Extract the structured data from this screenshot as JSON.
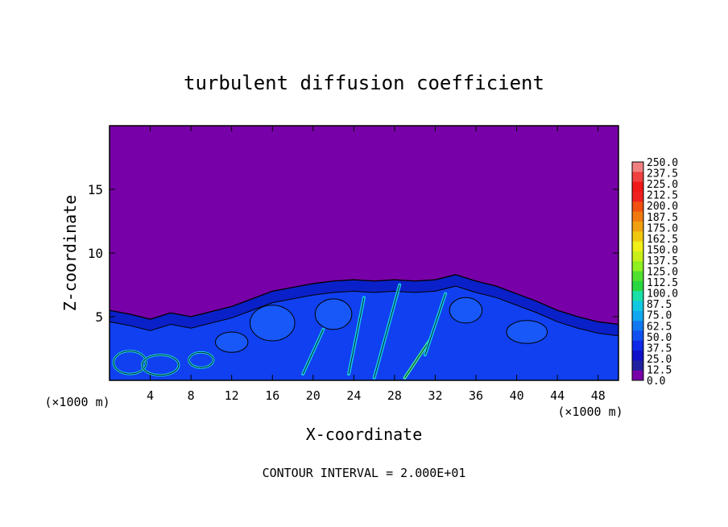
{
  "chart_data": {
    "type": "heatmap",
    "title": "turbulent diffusion coefficient",
    "xlabel": "X-coordinate",
    "ylabel": "Z-coordinate",
    "x_unit": "(×1000 m)",
    "y_unit": "(×1000 m)",
    "xlim": [
      0,
      50
    ],
    "ylim": [
      0,
      20
    ],
    "x_ticks": [
      4,
      8,
      12,
      16,
      20,
      24,
      28,
      32,
      36,
      40,
      44,
      48
    ],
    "y_ticks": [
      5,
      10,
      15
    ],
    "footer": "CONTOUR INTERVAL = 2.000E+01",
    "colorbar": {
      "labels": [
        "250.0",
        "237.5",
        "225.0",
        "212.5",
        "200.0",
        "187.5",
        "175.0",
        "162.5",
        "150.0",
        "137.5",
        "125.0",
        "112.5",
        "100.0",
        "87.5",
        "75.0",
        "62.5",
        "50.0",
        "37.5",
        "25.0",
        "12.5",
        "0.0"
      ],
      "colors": [
        "#f08080",
        "#f04040",
        "#f01818",
        "#f02020",
        "#f05010",
        "#f07a10",
        "#f0a010",
        "#f0c810",
        "#f0f018",
        "#c8f018",
        "#90f020",
        "#50e030",
        "#28d840",
        "#18e0a8",
        "#10c8e0",
        "#10a8f0",
        "#1078f0",
        "#1050f0",
        "#1028e8",
        "#1010c8",
        "#2020a0",
        "#7800a8"
      ]
    },
    "background_color": "#7800a8",
    "field_color": "#1040f0",
    "boundary_layer_height": [
      [
        0,
        5.5
      ],
      [
        2,
        5.2
      ],
      [
        4,
        4.8
      ],
      [
        6,
        5.3
      ],
      [
        8,
        5.0
      ],
      [
        10,
        5.4
      ],
      [
        12,
        5.8
      ],
      [
        14,
        6.4
      ],
      [
        16,
        7.0
      ],
      [
        18,
        7.3
      ],
      [
        20,
        7.6
      ],
      [
        22,
        7.8
      ],
      [
        24,
        7.9
      ],
      [
        26,
        7.8
      ],
      [
        28,
        7.9
      ],
      [
        30,
        7.8
      ],
      [
        32,
        7.9
      ],
      [
        34,
        8.3
      ],
      [
        36,
        7.8
      ],
      [
        38,
        7.4
      ],
      [
        40,
        6.8
      ],
      [
        42,
        6.2
      ],
      [
        44,
        5.5
      ],
      [
        46,
        5.0
      ],
      [
        48,
        4.6
      ],
      [
        50,
        4.4
      ]
    ],
    "high_value_streaks": [
      {
        "x": [
          26.0,
          28.5
        ],
        "z": [
          0.2,
          7.5
        ]
      },
      {
        "x": [
          29.0,
          31.5
        ],
        "z": [
          0.2,
          3.2
        ]
      },
      {
        "x": [
          23.5,
          25.0
        ],
        "z": [
          0.5,
          6.5
        ]
      },
      {
        "x": [
          31.0,
          33.0
        ],
        "z": [
          2.0,
          6.8
        ]
      },
      {
        "x": [
          19.0,
          21.0
        ],
        "z": [
          0.5,
          4.0
        ]
      }
    ],
    "surface_eddies": [
      {
        "x": 2.0,
        "z": 1.4,
        "rx": 1.6,
        "rz": 0.9
      },
      {
        "x": 5.0,
        "z": 1.2,
        "rx": 1.8,
        "rz": 0.8
      },
      {
        "x": 9.0,
        "z": 1.6,
        "rx": 1.2,
        "rz": 0.6
      }
    ]
  }
}
